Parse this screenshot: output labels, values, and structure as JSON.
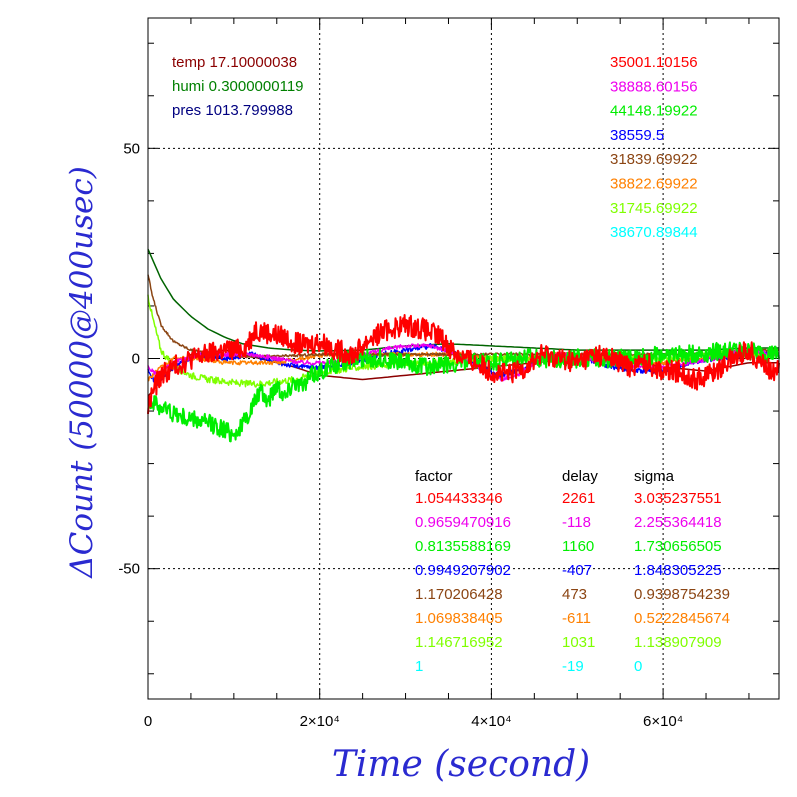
{
  "chart_data": {
    "type": "line",
    "xlabel": "Time (second)",
    "ylabel": "ΔCount (50000@400usec)",
    "xlim": [
      0,
      73500
    ],
    "ylim": [
      -81,
      81
    ],
    "grid": true,
    "x_ticks": [
      {
        "value": 0,
        "label": "0"
      },
      {
        "value": 20000,
        "label": "2×10⁴"
      },
      {
        "value": 40000,
        "label": "4×10⁴"
      },
      {
        "value": 60000,
        "label": "6×10⁴"
      }
    ],
    "y_ticks": [
      {
        "value": 50,
        "label": "50"
      },
      {
        "value": 0,
        "label": "0"
      },
      {
        "value": -50,
        "label": "-50"
      }
    ],
    "environment": [
      {
        "text": "temp 17.10000038",
        "color": "#8b0000"
      },
      {
        "text": "humi 0.3000000119",
        "color": "#008000"
      },
      {
        "text": "pres 1013.799988",
        "color": "#000080"
      }
    ],
    "means": [
      {
        "text": "35001.10156",
        "color": "#ff0000"
      },
      {
        "text": "38888.60156",
        "color": "#ee00ee"
      },
      {
        "text": "44148.19922",
        "color": "#00ee00"
      },
      {
        "text": "38559.5",
        "color": "#0000ff"
      },
      {
        "text": "31839.69922",
        "color": "#8b4513"
      },
      {
        "text": "38822.69922",
        "color": "#ff8000"
      },
      {
        "text": "31745.69922",
        "color": "#7fff00"
      },
      {
        "text": "38670.89844",
        "color": "#00ffff"
      }
    ],
    "table": {
      "headers": [
        "factor",
        "delay",
        "sigma"
      ],
      "rows": [
        {
          "factor": "1.054433346",
          "delay": "2261",
          "sigma": "3.035237551",
          "color": "#ff0000"
        },
        {
          "factor": "0.9659470916",
          "delay": "-118",
          "sigma": "2.255364418",
          "color": "#ee00ee"
        },
        {
          "factor": "0.8135588169",
          "delay": "1160",
          "sigma": "1.730656505",
          "color": "#00ee00"
        },
        {
          "factor": "0.9949207902",
          "delay": "-407",
          "sigma": "1.848305225",
          "color": "#0000ff"
        },
        {
          "factor": "1.170206428",
          "delay": "473",
          "sigma": "0.9398754239",
          "color": "#8b4513"
        },
        {
          "factor": "1.069838405",
          "delay": "-611",
          "sigma": "0.5222845674",
          "color": "#ff8000"
        },
        {
          "factor": "1.146716952",
          "delay": "1031",
          "sigma": "1.138907909",
          "color": "#7fff00"
        },
        {
          "factor": "1",
          "delay": "-19",
          "sigma": "0",
          "color": "#00ffff"
        }
      ]
    },
    "series": [
      {
        "color": "#8b0000",
        "noise": 0,
        "x": [
          0,
          2000,
          5000,
          9000,
          13000,
          17000,
          20000,
          25000,
          30000,
          35000,
          40000,
          45000,
          50000,
          55000,
          60000,
          65000,
          70000,
          73500
        ],
        "y": [
          -9,
          -4,
          1,
          2,
          0,
          -2,
          -4,
          -5,
          -4,
          -3,
          -2,
          -1,
          0,
          0,
          -2,
          -3,
          -1,
          -1
        ]
      },
      {
        "color": "#006400",
        "noise": 0,
        "x": [
          0,
          1500,
          3000,
          5000,
          7000,
          9000,
          11000,
          14000,
          17000,
          20000,
          25000,
          30000,
          35000,
          40000,
          45000,
          50000,
          55000,
          60000,
          65000,
          70000,
          73500
        ],
        "y": [
          26,
          19,
          14,
          10,
          7,
          5,
          3.5,
          2.5,
          2,
          1.8,
          2,
          3,
          3.5,
          3,
          2.5,
          2,
          2,
          2,
          2,
          2.5,
          2.5
        ]
      },
      {
        "color": "#0000ff",
        "noise": 0.6,
        "x": [
          0,
          1000,
          3000,
          6000,
          9000,
          12000,
          15000,
          18000,
          21000,
          24000,
          27000,
          30000,
          33000,
          36000,
          39000,
          41000,
          43000,
          45000,
          48000,
          51000,
          54000,
          57000,
          60000,
          63000,
          66000,
          70000,
          73500
        ],
        "y": [
          -3,
          -6,
          -2,
          1,
          0,
          1,
          -1,
          -2,
          -2,
          -1,
          1,
          2,
          3,
          1,
          -2,
          -4,
          -3,
          -1,
          1,
          0,
          -2,
          -3,
          -3,
          -1,
          0,
          1,
          1
        ]
      },
      {
        "color": "#ff8000",
        "noise": 0.5,
        "x": [
          0,
          1000,
          3000,
          6000,
          9000,
          12000,
          15000,
          18000,
          21000,
          24000,
          27000,
          30000,
          33000,
          36000,
          40000,
          44000,
          48000,
          52000,
          56000,
          60000,
          64000,
          68000,
          73500
        ],
        "y": [
          -5,
          -3,
          0,
          0,
          -1,
          -1,
          -1,
          0,
          1,
          1,
          1,
          1,
          1,
          1,
          0,
          0,
          1,
          0,
          -1,
          -1,
          0,
          1,
          1
        ]
      },
      {
        "color": "#8b4513",
        "noise": 0.3,
        "x": [
          0,
          500,
          1500,
          3000,
          5000,
          8000,
          11000,
          15000,
          20000,
          25000,
          30000,
          35000,
          40000,
          45000,
          50000,
          55000,
          60000,
          65000,
          70000,
          73500
        ],
        "y": [
          20,
          15,
          8,
          4,
          2,
          1,
          0.5,
          0.5,
          1,
          1,
          1,
          1,
          1,
          1,
          1,
          1,
          1,
          1,
          2,
          2
        ]
      },
      {
        "color": "#7fff00",
        "noise": 0.8,
        "x": [
          0,
          500,
          1500,
          3000,
          5000,
          7000,
          9000,
          11000,
          13000,
          15000,
          17000,
          19000,
          21000,
          25000,
          30000,
          35000,
          40000,
          45000,
          50000,
          55000,
          60000,
          65000,
          70000,
          73500
        ],
        "y": [
          15,
          10,
          2,
          -2,
          -4,
          -5,
          -5.5,
          -6,
          -6,
          -5.5,
          -5,
          -4,
          -3,
          -2,
          -1,
          -1,
          0,
          0,
          0,
          0,
          0,
          1,
          1,
          1
        ]
      },
      {
        "color": "#ee00ee",
        "noise": 0.5,
        "x": [
          0,
          1000,
          3000,
          6000,
          9000,
          12000,
          15000,
          18000,
          21000,
          24000,
          27000,
          30000,
          33000,
          36000,
          39000,
          41000,
          43000,
          45000,
          48000,
          51000,
          54000,
          57000,
          60000,
          63000,
          66000,
          69000,
          73500
        ],
        "y": [
          -2,
          -4,
          -1,
          1,
          1,
          1,
          0,
          -1,
          -1,
          0,
          2,
          3,
          3,
          1,
          -3,
          -5,
          -4,
          -1,
          1,
          0,
          -1,
          -2,
          -2,
          -1,
          0,
          2,
          1
        ]
      },
      {
        "color": "#00ee00",
        "noise": 2.2,
        "x": [
          0,
          1000,
          2000,
          4000,
          6000,
          8000,
          10000,
          11000,
          12000,
          13000,
          14000,
          15000,
          16000,
          17000,
          18000,
          19000,
          21000,
          24000,
          27000,
          30000,
          33000,
          36000,
          40000,
          44000,
          48000,
          52000,
          56000,
          60000,
          64000,
          68000,
          73500
        ],
        "y": [
          -10,
          -11,
          -12,
          -14,
          -15,
          -16,
          -18,
          -16,
          -12,
          -8,
          -10,
          -6,
          -9,
          -5,
          -7,
          -4,
          -2,
          0,
          0,
          -1,
          -2,
          -1,
          -1,
          0,
          0,
          0,
          0,
          1,
          1,
          2,
          1
        ]
      },
      {
        "color": "#ff0000",
        "noise": 2.6,
        "x": [
          0,
          500,
          1500,
          3000,
          5000,
          7000,
          9000,
          10500,
          11500,
          12500,
          14000,
          16000,
          18000,
          20000,
          22000,
          24000,
          26000,
          28000,
          30000,
          32000,
          34000,
          36000,
          38000,
          40000,
          42000,
          44000,
          46000,
          48000,
          50000,
          52000,
          54000,
          56000,
          58000,
          60000,
          62000,
          64000,
          66000,
          68000,
          70000,
          72000,
          73500
        ],
        "y": [
          -12,
          -8,
          -4,
          -2,
          0,
          1,
          2,
          2,
          3,
          7,
          6,
          5,
          3,
          4,
          2,
          1,
          5,
          7,
          8,
          7,
          5,
          1,
          -1,
          -3,
          -4,
          -2,
          1,
          0,
          -1,
          1,
          0,
          -2,
          -1,
          -3,
          -3,
          -5,
          -3,
          0,
          2,
          -2,
          -3
        ]
      }
    ]
  }
}
